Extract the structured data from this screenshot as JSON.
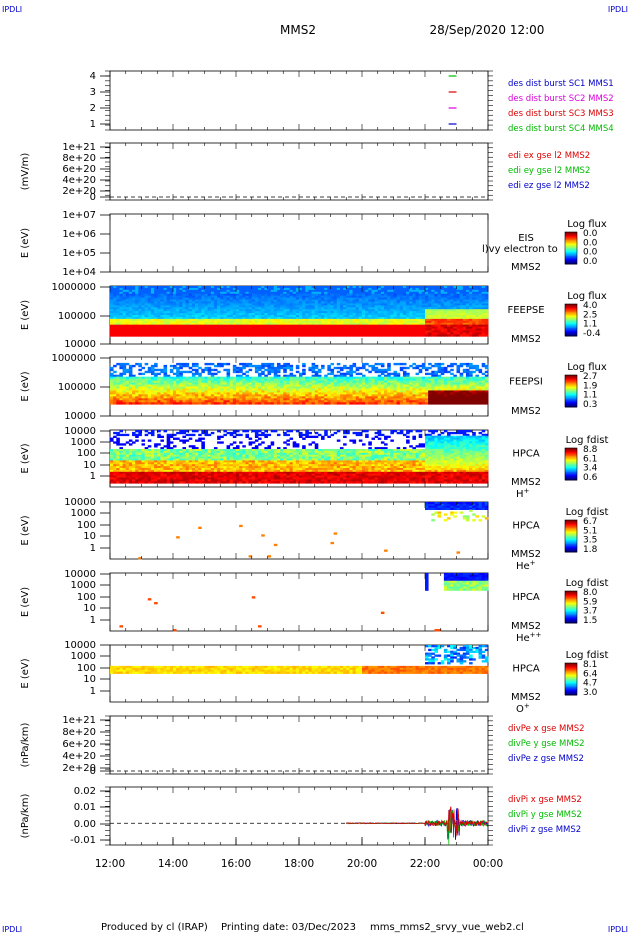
{
  "header": {
    "corner_left": "IPDLI",
    "corner_right": "IPDLI",
    "title": "MMS2",
    "datetime": "28/Sep/2020 12:00"
  },
  "footer": {
    "corner_left": "IPDLI",
    "corner_right": "IPDLI",
    "produced_by": "Produced by cl (IRAP)",
    "printing_date": "Printing date: 03/Dec/2023",
    "script_name": "mms_mms2_srvy_vue_web2.cl"
  },
  "chart_data": [
    {
      "id": "burst",
      "type": "line",
      "ylabel": "",
      "y_ticks": [
        "4",
        "3",
        "2",
        "1"
      ],
      "legend": [
        {
          "label": "des dist burst SC1 MMS1",
          "color": "#0000cc"
        },
        {
          "label": "des dist burst SC2 MMS2",
          "color": "#dd00dd"
        },
        {
          "label": "des dist burst SC3 MMS3",
          "color": "#dd0000"
        },
        {
          "label": "des dist burst SC4 MMS4",
          "color": "#00bb00"
        }
      ],
      "segments": [
        {
          "sc": 4,
          "t_start": 22.75,
          "t_end": 23.0,
          "color": "#00bb00"
        },
        {
          "sc": 3,
          "t_start": 22.75,
          "t_end": 23.0,
          "color": "#dd0000"
        },
        {
          "sc": 2,
          "t_start": 22.75,
          "t_end": 23.0,
          "color": "#dd00dd"
        },
        {
          "sc": 1,
          "t_start": 22.75,
          "t_end": 23.0,
          "color": "#0000cc"
        }
      ]
    },
    {
      "id": "edi",
      "type": "line",
      "ylabel": "(mV/m)",
      "y_ticks": [
        "1e+21",
        "8e+20",
        "6e+20",
        "4e+20",
        "2e+20",
        "0"
      ],
      "legend": [
        {
          "label": "edi ex gse l2 MMS2",
          "color": "#dd0000"
        },
        {
          "label": "edi ey gse l2 MMS2",
          "color": "#00bb00"
        },
        {
          "label": "edi ez gse l2 MMS2",
          "color": "#0000cc"
        }
      ]
    },
    {
      "id": "eis",
      "type": "heatmap",
      "ylabel": "E (eV)",
      "y_ticks": [
        "1e+07",
        "1e+06",
        "1e+05",
        "1e+04"
      ],
      "instrument": "EIS",
      "overlay_text": "l)vy electron to",
      "spacecraft": "MMS2",
      "species": "",
      "colorbar_title": "Log flux",
      "colorbar_ticks": [
        "0.0",
        "0.0",
        "0.0",
        "0.0"
      ]
    },
    {
      "id": "feepse",
      "type": "heatmap",
      "ylabel": "E (eV)",
      "y_ticks": [
        "1000000",
        "100000",
        "10000"
      ],
      "instrument": "FEEPSE",
      "spacecraft": "MMS2",
      "species": "",
      "colorbar_title": "Log flux",
      "colorbar_ticks": [
        "4.0",
        "2.5",
        "1.1",
        "-0.4"
      ]
    },
    {
      "id": "feepsi",
      "type": "heatmap",
      "ylabel": "E (eV)",
      "y_ticks": [
        "1000000",
        "100000",
        "10000"
      ],
      "instrument": "FEEPSI",
      "spacecraft": "MMS2",
      "species": "",
      "colorbar_title": "Log flux",
      "colorbar_ticks": [
        "2.7",
        "1.9",
        "1.1",
        "0.3"
      ]
    },
    {
      "id": "hpca_h",
      "type": "heatmap",
      "ylabel": "E (eV)",
      "y_ticks": [
        "10000",
        "1000",
        "100",
        "10",
        "1"
      ],
      "instrument": "HPCA",
      "spacecraft": "MMS2",
      "species": "H+",
      "colorbar_title": "Log fdist",
      "colorbar_ticks": [
        "8.8",
        "6.1",
        "3.4",
        "0.6"
      ]
    },
    {
      "id": "hpca_he",
      "type": "heatmap",
      "ylabel": "E (eV)",
      "y_ticks": [
        "10000",
        "1000",
        "100",
        "10",
        "1"
      ],
      "instrument": "HPCA",
      "spacecraft": "MMS2",
      "species": "He+",
      "colorbar_title": "Log fdist",
      "colorbar_ticks": [
        "6.7",
        "5.1",
        "3.5",
        "1.8"
      ]
    },
    {
      "id": "hpca_he2",
      "type": "heatmap",
      "ylabel": "E (eV)",
      "y_ticks": [
        "10000",
        "1000",
        "100",
        "10",
        "1"
      ],
      "instrument": "HPCA",
      "spacecraft": "MMS2",
      "species": "He++",
      "colorbar_title": "Log fdist",
      "colorbar_ticks": [
        "8.0",
        "5.9",
        "3.7",
        "1.5"
      ]
    },
    {
      "id": "hpca_o",
      "type": "heatmap",
      "ylabel": "E (eV)",
      "y_ticks": [
        "10000",
        "1000",
        "100",
        "10",
        "1"
      ],
      "instrument": "HPCA",
      "spacecraft": "MMS2",
      "species": "O+",
      "colorbar_title": "Log fdist",
      "colorbar_ticks": [
        "8.1",
        "6.4",
        "4.7",
        "3.0"
      ]
    },
    {
      "id": "divpe",
      "type": "line",
      "ylabel": "(nPa/km)",
      "y_ticks": [
        "1e+21",
        "8e+20",
        "6e+20",
        "4e+20",
        "2e+20",
        "0"
      ],
      "legend": [
        {
          "label": "divPe x gse MMS2",
          "color": "#dd0000"
        },
        {
          "label": "divPe y gse MMS2",
          "color": "#00bb00"
        },
        {
          "label": "divPe z gse MMS2",
          "color": "#0000cc"
        }
      ]
    },
    {
      "id": "divpi",
      "type": "line",
      "ylabel": "(nPa/km)",
      "y_ticks": [
        "0.02",
        "0.01",
        "0.00",
        "-0.01"
      ],
      "y_values": [
        0.02,
        0.01,
        0.0,
        -0.01
      ],
      "ylim": [
        -0.015,
        0.025
      ],
      "legend": [
        {
          "label": "divPi x gse MMS2",
          "color": "#dd0000"
        },
        {
          "label": "divPi y gse MMS2",
          "color": "#00bb00"
        },
        {
          "label": "divPi z gse MMS2",
          "color": "#0000cc"
        }
      ]
    }
  ],
  "x_axis": {
    "ticks": [
      "12:00",
      "14:00",
      "16:00",
      "18:00",
      "20:00",
      "22:00",
      "00:00"
    ],
    "range_hours": [
      12,
      24
    ]
  }
}
